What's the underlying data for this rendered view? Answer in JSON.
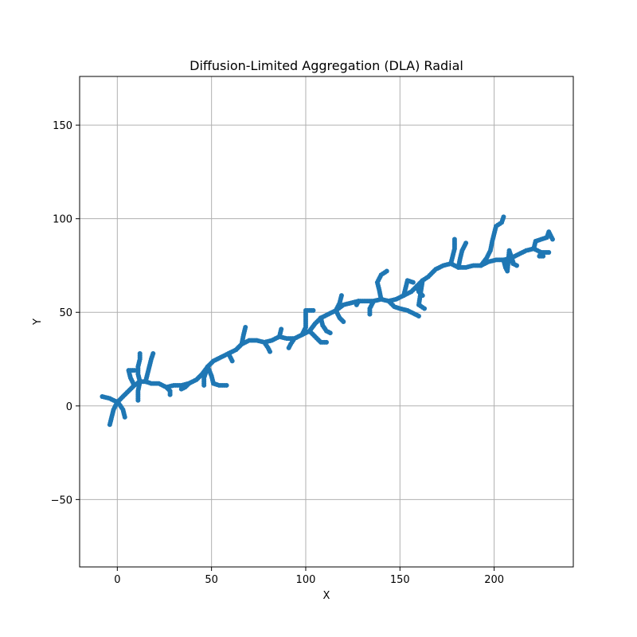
{
  "chart_data": {
    "type": "scatter",
    "title": "Diffusion-Limited Aggregation (DLA) Radial",
    "xlabel": "X",
    "ylabel": "Y",
    "xlim": [
      -20,
      242
    ],
    "ylim": [
      -86,
      176
    ],
    "xticks": [
      0,
      50,
      100,
      150,
      200
    ],
    "yticks": [
      -50,
      0,
      50,
      100,
      150
    ],
    "xtick_labels": [
      "0",
      "50",
      "100",
      "150",
      "200"
    ],
    "ytick_labels": [
      "−50",
      "0",
      "50",
      "100",
      "150"
    ],
    "grid": true,
    "marker_color": "#1f77b4",
    "grid_color": "#b0b0b0",
    "path": [
      [
        -8,
        5
      ],
      [
        -4,
        4
      ],
      [
        0,
        2
      ],
      [
        3,
        5
      ],
      [
        6,
        8
      ],
      [
        9,
        11
      ],
      [
        12,
        13
      ],
      [
        15,
        13
      ],
      [
        18,
        12
      ],
      [
        22,
        12
      ],
      [
        26,
        10
      ],
      [
        30,
        11
      ],
      [
        34,
        11
      ],
      [
        38,
        12
      ],
      [
        42,
        14
      ],
      [
        45,
        17
      ],
      [
        48,
        21
      ],
      [
        51,
        24
      ],
      [
        55,
        26
      ],
      [
        59,
        28
      ],
      [
        63,
        30
      ],
      [
        66,
        33
      ],
      [
        70,
        35
      ],
      [
        74,
        35
      ],
      [
        78,
        34
      ],
      [
        82,
        35
      ],
      [
        86,
        37
      ],
      [
        90,
        36
      ],
      [
        94,
        36
      ],
      [
        98,
        38
      ],
      [
        102,
        40
      ],
      [
        105,
        44
      ],
      [
        108,
        47
      ],
      [
        112,
        49
      ],
      [
        116,
        51
      ],
      [
        120,
        54
      ],
      [
        124,
        55
      ],
      [
        128,
        56
      ],
      [
        132,
        56
      ],
      [
        136,
        56
      ],
      [
        140,
        57
      ],
      [
        144,
        56
      ],
      [
        148,
        57
      ],
      [
        152,
        59
      ],
      [
        156,
        61
      ],
      [
        159,
        64
      ],
      [
        162,
        67
      ],
      [
        165,
        69
      ],
      [
        169,
        73
      ],
      [
        173,
        75
      ],
      [
        177,
        76
      ],
      [
        181,
        74
      ],
      [
        185,
        74
      ],
      [
        189,
        75
      ],
      [
        193,
        75
      ],
      [
        197,
        77
      ],
      [
        201,
        78
      ],
      [
        205,
        78
      ],
      [
        209,
        79
      ],
      [
        213,
        81
      ],
      [
        217,
        83
      ],
      [
        221,
        84
      ],
      [
        225,
        82
      ],
      [
        229,
        82
      ]
    ],
    "branches": [
      [
        [
          0,
          2
        ],
        [
          -2,
          -2
        ],
        [
          -3,
          -6
        ],
        [
          -4,
          -10
        ]
      ],
      [
        [
          1,
          1
        ],
        [
          3,
          -2
        ],
        [
          4,
          -6
        ]
      ],
      [
        [
          12,
          13
        ],
        [
          11,
          17
        ],
        [
          11,
          21
        ],
        [
          12,
          25
        ],
        [
          12,
          28
        ]
      ],
      [
        [
          15,
          13
        ],
        [
          16,
          17
        ],
        [
          17,
          21
        ],
        [
          18,
          25
        ],
        [
          19,
          28
        ]
      ],
      [
        [
          9,
          11
        ],
        [
          7,
          15
        ],
        [
          6,
          19
        ],
        [
          9,
          19
        ]
      ],
      [
        [
          12,
          13
        ],
        [
          11,
          8
        ],
        [
          11,
          3
        ]
      ],
      [
        [
          26,
          10
        ],
        [
          28,
          8
        ],
        [
          28,
          6
        ]
      ],
      [
        [
          38,
          12
        ],
        [
          36,
          10
        ],
        [
          34,
          9
        ]
      ],
      [
        [
          48,
          21
        ],
        [
          50,
          16
        ],
        [
          51,
          12
        ],
        [
          54,
          11
        ],
        [
          58,
          11
        ]
      ],
      [
        [
          48,
          21
        ],
        [
          46,
          15
        ],
        [
          46,
          11
        ]
      ],
      [
        [
          59,
          28
        ],
        [
          61,
          24
        ]
      ],
      [
        [
          66,
          33
        ],
        [
          67,
          38
        ],
        [
          68,
          42
        ]
      ],
      [
        [
          78,
          34
        ],
        [
          80,
          31
        ],
        [
          81,
          29
        ]
      ],
      [
        [
          86,
          37
        ],
        [
          87,
          41
        ]
      ],
      [
        [
          94,
          36
        ],
        [
          92,
          33
        ],
        [
          91,
          31
        ]
      ],
      [
        [
          98,
          38
        ],
        [
          100,
          42
        ],
        [
          100,
          47
        ],
        [
          100,
          51
        ],
        [
          104,
          51
        ]
      ],
      [
        [
          102,
          40
        ],
        [
          105,
          37
        ],
        [
          108,
          34
        ],
        [
          111,
          34
        ]
      ],
      [
        [
          108,
          47
        ],
        [
          109,
          43
        ],
        [
          111,
          40
        ],
        [
          113,
          39
        ]
      ],
      [
        [
          116,
          51
        ],
        [
          118,
          55
        ],
        [
          119,
          59
        ]
      ],
      [
        [
          116,
          51
        ],
        [
          118,
          47
        ],
        [
          120,
          45
        ]
      ],
      [
        [
          128,
          56
        ],
        [
          127,
          54
        ]
      ],
      [
        [
          136,
          56
        ],
        [
          134,
          52
        ],
        [
          134,
          49
        ]
      ],
      [
        [
          140,
          57
        ],
        [
          139,
          62
        ],
        [
          138,
          66
        ],
        [
          140,
          70
        ],
        [
          143,
          72
        ]
      ],
      [
        [
          144,
          56
        ],
        [
          147,
          53
        ],
        [
          150,
          52
        ],
        [
          154,
          51
        ],
        [
          156,
          50
        ],
        [
          160,
          48
        ]
      ],
      [
        [
          152,
          59
        ],
        [
          153,
          63
        ],
        [
          154,
          67
        ],
        [
          157,
          66
        ]
      ],
      [
        [
          159,
          64
        ],
        [
          160,
          61
        ],
        [
          162,
          59
        ]
      ],
      [
        [
          162,
          67
        ],
        [
          160,
          54
        ],
        [
          163,
          52
        ]
      ],
      [
        [
          177,
          76
        ],
        [
          178,
          80
        ],
        [
          179,
          84
        ],
        [
          179,
          89
        ]
      ],
      [
        [
          181,
          74
        ],
        [
          182,
          79
        ],
        [
          183,
          83
        ],
        [
          185,
          87
        ]
      ],
      [
        [
          193,
          75
        ],
        [
          196,
          79
        ],
        [
          198,
          83
        ],
        [
          199,
          88
        ],
        [
          200,
          92
        ],
        [
          201,
          96
        ],
        [
          204,
          98
        ],
        [
          205,
          101
        ]
      ],
      [
        [
          205,
          78
        ],
        [
          206,
          74
        ],
        [
          207,
          72
        ],
        [
          208,
          83
        ],
        [
          210,
          77
        ]
      ],
      [
        [
          209,
          79
        ],
        [
          210,
          76
        ],
        [
          212,
          75
        ]
      ],
      [
        [
          221,
          84
        ],
        [
          222,
          88
        ],
        [
          225,
          89
        ],
        [
          228,
          90
        ],
        [
          229,
          93
        ],
        [
          231,
          89
        ]
      ],
      [
        [
          225,
          82
        ],
        [
          224,
          80
        ],
        [
          226,
          80
        ]
      ]
    ]
  }
}
